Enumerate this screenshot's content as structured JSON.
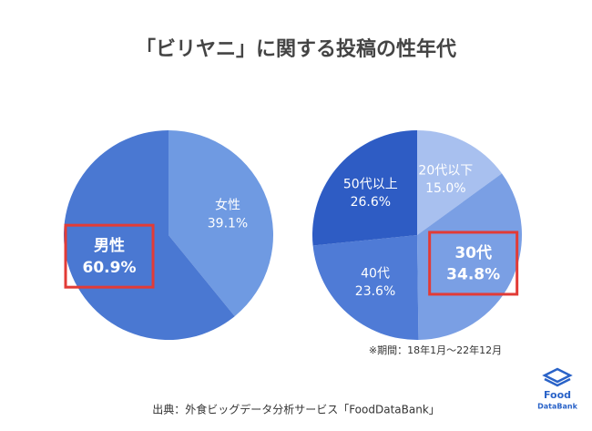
{
  "title": "「ビリヤニ」に関する投稿の性年代",
  "note": "※期間：18年1月〜22年12月",
  "source": "出典：外食ビッグデータ分析サービス「FoodDataBank」",
  "logo": [
    "Food",
    "DataBank"
  ],
  "chart_data": [
    {
      "type": "pie",
      "categories": [
        "女性",
        "男性"
      ],
      "values": [
        39.1,
        60.9
      ],
      "value_labels": [
        "39.1%",
        "60.9%"
      ],
      "colors": [
        "#6f9ae2",
        "#4a78d2"
      ],
      "highlight": 1
    },
    {
      "type": "pie",
      "categories": [
        "20代以下",
        "30代",
        "40代",
        "50代以上"
      ],
      "values": [
        15.0,
        34.8,
        23.6,
        26.6
      ],
      "value_labels": [
        "15.0%",
        "34.8%",
        "23.6%",
        "26.6%"
      ],
      "colors": [
        "#a8c0ef",
        "#7a9fe4",
        "#4f7bd6",
        "#2e5cc4"
      ],
      "highlight": 1
    }
  ]
}
